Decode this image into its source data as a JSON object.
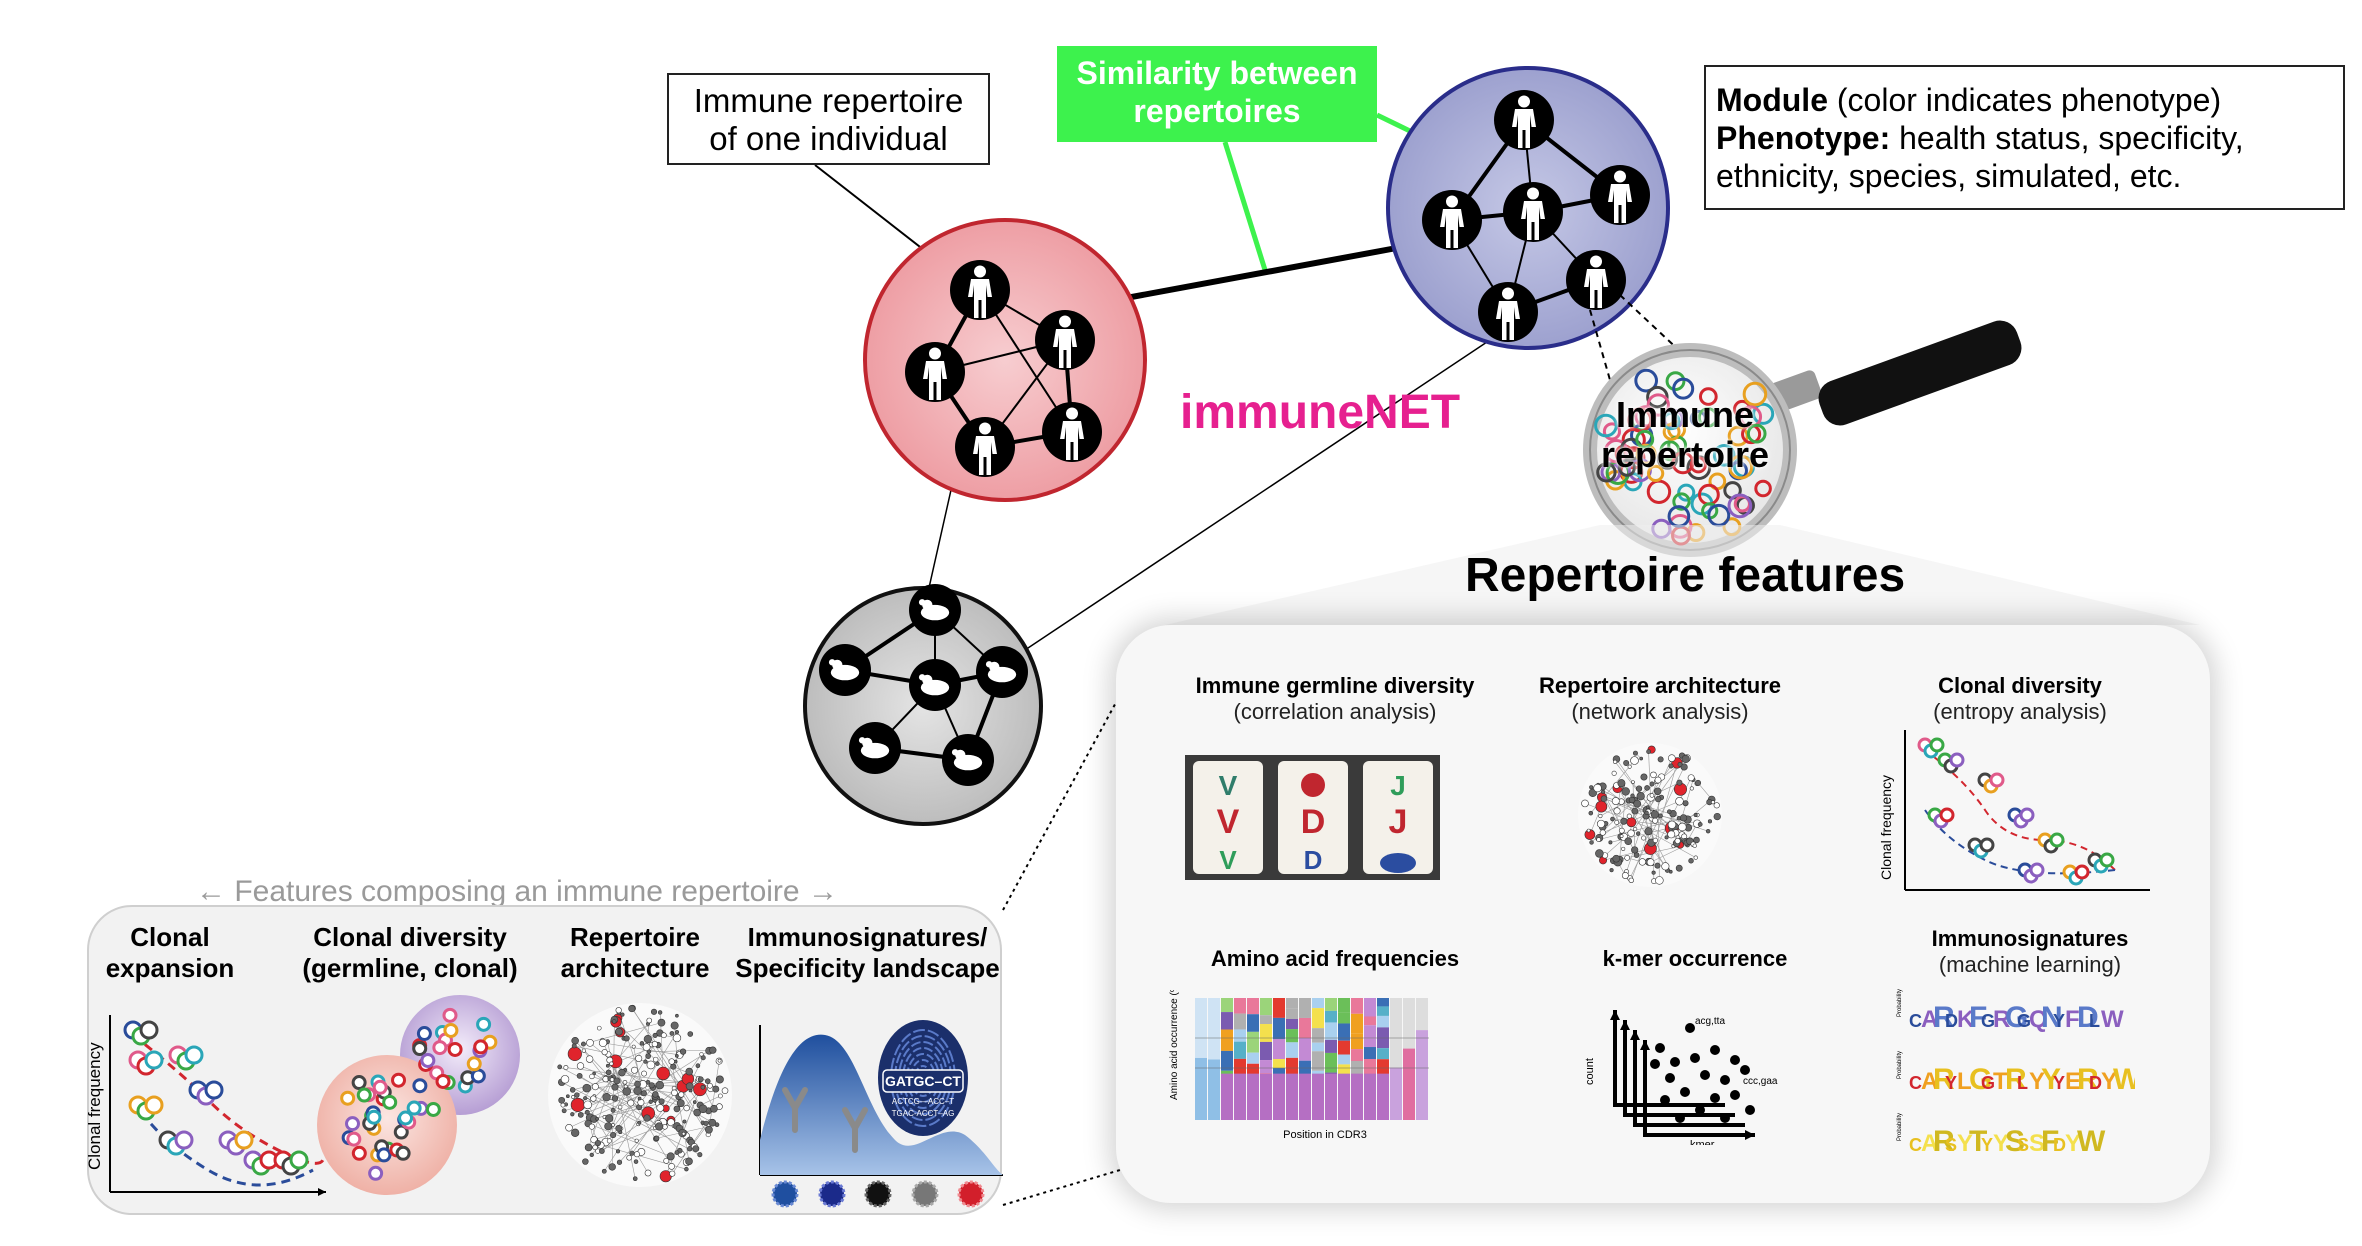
{
  "callouts": {
    "individual": "Immune repertoire\nof one individual",
    "similarity": "Similarity between\nrepertoires"
  },
  "legend": {
    "module_label": "Module",
    "module_text": " (color indicates phenotype)",
    "phenotype_label": "Phenotype:",
    "phenotype_text": " health status, specificity,",
    "phenotype_text2": "ethnicity, species, simulated, etc."
  },
  "network_title": "immuneNET",
  "magnifier_label": "Immune\nrepertoire",
  "repertoire_features_title": "Repertoire features",
  "features": [
    {
      "title": "Immune germline  diversity",
      "subtitle": "(correlation analysis)"
    },
    {
      "title": "Repertoire architecture",
      "subtitle": "(network analysis)"
    },
    {
      "title": "Clonal diversity",
      "subtitle": "(entropy analysis)"
    },
    {
      "title": "Amino acid frequencies",
      "subtitle": ""
    },
    {
      "title": "k-mer occurrence",
      "subtitle": ""
    },
    {
      "title": "Immunosignatures",
      "subtitle": "(machine learning)"
    }
  ],
  "feature_details": {
    "slot_letters": [
      "V",
      "D",
      "J"
    ],
    "aa_ylabel": "Amino acid\noccurrence (%)",
    "aa_xlabel": "Position in CDR3",
    "kmer_ylabel": "count",
    "kmer_xlabel": "kmer",
    "kmer_annotations": [
      "acg,tta",
      "ccc,gaa"
    ],
    "clonal_ylabel": "Clonal frequency",
    "logo_strings": [
      "CARDKFGRGGQNYFDLW",
      "CARYLGGTRLYYYERDYW",
      "CARSYTYYSSSFDYW"
    ]
  },
  "left_panel": {
    "arrow_text": "← Features composing an immune repertoire →",
    "headers": [
      {
        "line1": "Clonal",
        "line2": "expansion"
      },
      {
        "line1": "Clonal diversity",
        "line2": "(germline, clonal)"
      },
      {
        "line1": "Repertoire",
        "line2": "architecture"
      },
      {
        "line1": "Immunosignatures/",
        "line2": "Specificity landscape"
      }
    ],
    "clonal_ylabel": "Clonal frequency",
    "fingerprint_lines": [
      "GATGC–CT",
      "ACTCG—ACC–T",
      "TGAC-ACCT–AG"
    ]
  },
  "colors": {
    "red_module": "#f0b4b8",
    "blue_module": "#b0b3d9",
    "gray_module": "#d0d0d0",
    "similarity_green": "#3df24d",
    "immunenet_pink": "#e6208f"
  },
  "node_icons": {
    "human": "person-icon",
    "mouse": "mouse-icon"
  }
}
